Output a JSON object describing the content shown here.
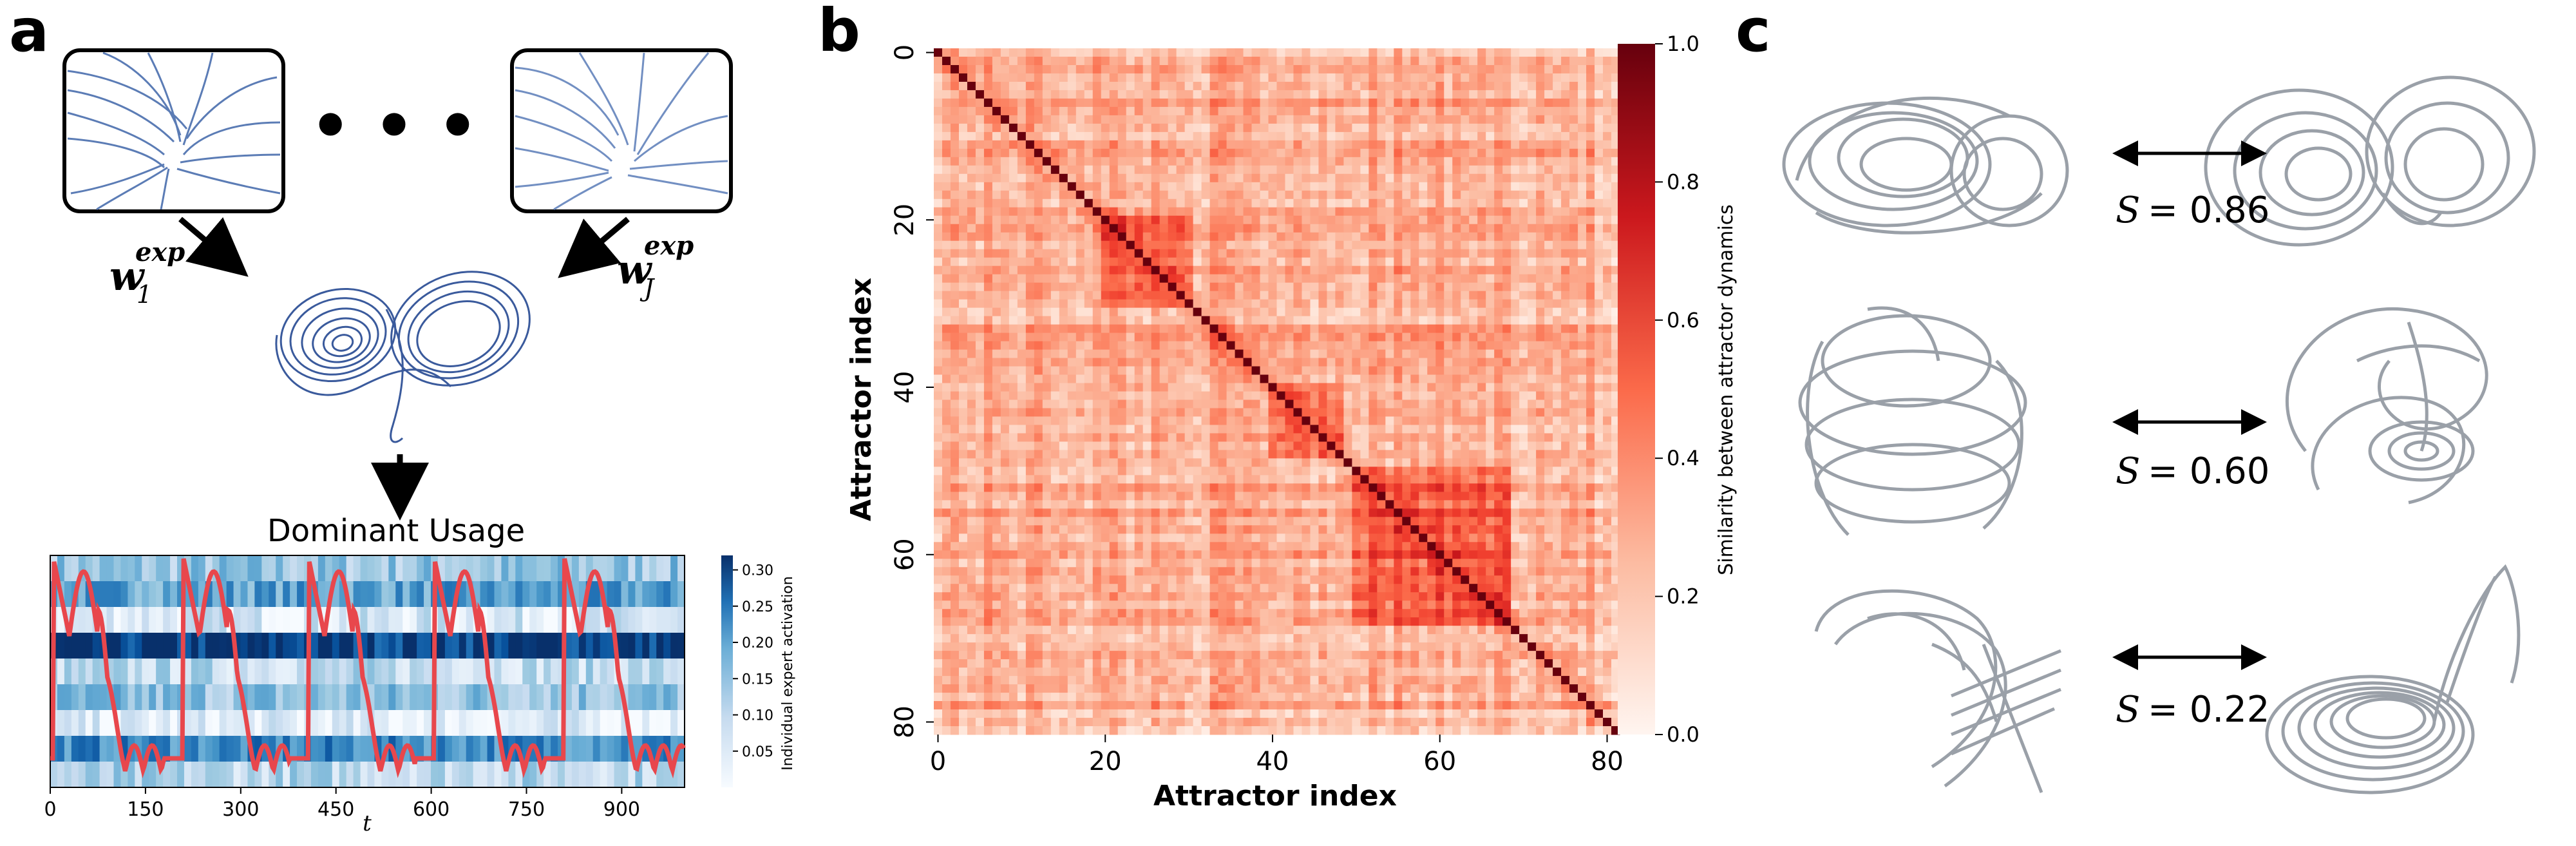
{
  "panels": {
    "a": {
      "letter": "a",
      "ellipsis": "• • •",
      "weight_left": {
        "base": "w",
        "sub": "1",
        "sup": "exp"
      },
      "weight_right": {
        "base": "w",
        "sub": "J",
        "sup": "exp"
      },
      "usage_label": "Dominant Usage",
      "chart_data": {
        "type": "heatmap",
        "title": "",
        "xlabel": "t",
        "x_ticks": [
          "0",
          "150",
          "300",
          "450",
          "600",
          "750",
          "900"
        ],
        "x_range": [
          0,
          999
        ],
        "colorbar_label": "Individual expert activation",
        "colorbar_ticks": [
          "0.30",
          "0.25",
          "0.20",
          "0.15",
          "0.10",
          "0.05"
        ],
        "colorbar_range": [
          0.0,
          0.32
        ],
        "colormap": "Blues",
        "row_mean_activation": [
          0.12,
          0.18,
          0.05,
          0.3,
          0.08,
          0.13,
          0.03,
          0.21,
          0.09
        ],
        "overlay_line_color": "#e8474c",
        "overlay_peaks_t": [
          5,
          210,
          407,
          605,
          810
        ]
      }
    },
    "b": {
      "letter": "b",
      "chart_data": {
        "type": "heatmap",
        "title": "",
        "xlabel": "Attractor index",
        "ylabel": "Attractor index",
        "x_ticks": [
          "0",
          "20",
          "40",
          "60",
          "80"
        ],
        "y_ticks": [
          "0",
          "20",
          "40",
          "60",
          "80"
        ],
        "n": 82,
        "colorbar_label": "Similarity between attractor dynamics",
        "colorbar_ticks": [
          "1.0",
          "0.8",
          "0.6",
          "0.4",
          "0.2",
          "0.0"
        ],
        "colorbar_range": [
          0.0,
          1.0
        ],
        "colormap": "Reds",
        "diagonal_value": 1.0,
        "typical_offdiagonal": 0.3,
        "high_similarity_blocks": [
          [
            20,
            30
          ],
          [
            40,
            48
          ],
          [
            50,
            68
          ]
        ]
      }
    },
    "c": {
      "letter": "c",
      "pairs": [
        {
          "label": "S",
          "value": "= 0.86"
        },
        {
          "label": "S",
          "value": "= 0.60"
        },
        {
          "label": "S",
          "value": "= 0.22"
        }
      ]
    }
  },
  "colors": {
    "phase_blue": "#3a5a9c",
    "attractor_gray": "#9aa0a8",
    "heat_red": "#d93a32",
    "curve_red": "#e8474c"
  }
}
